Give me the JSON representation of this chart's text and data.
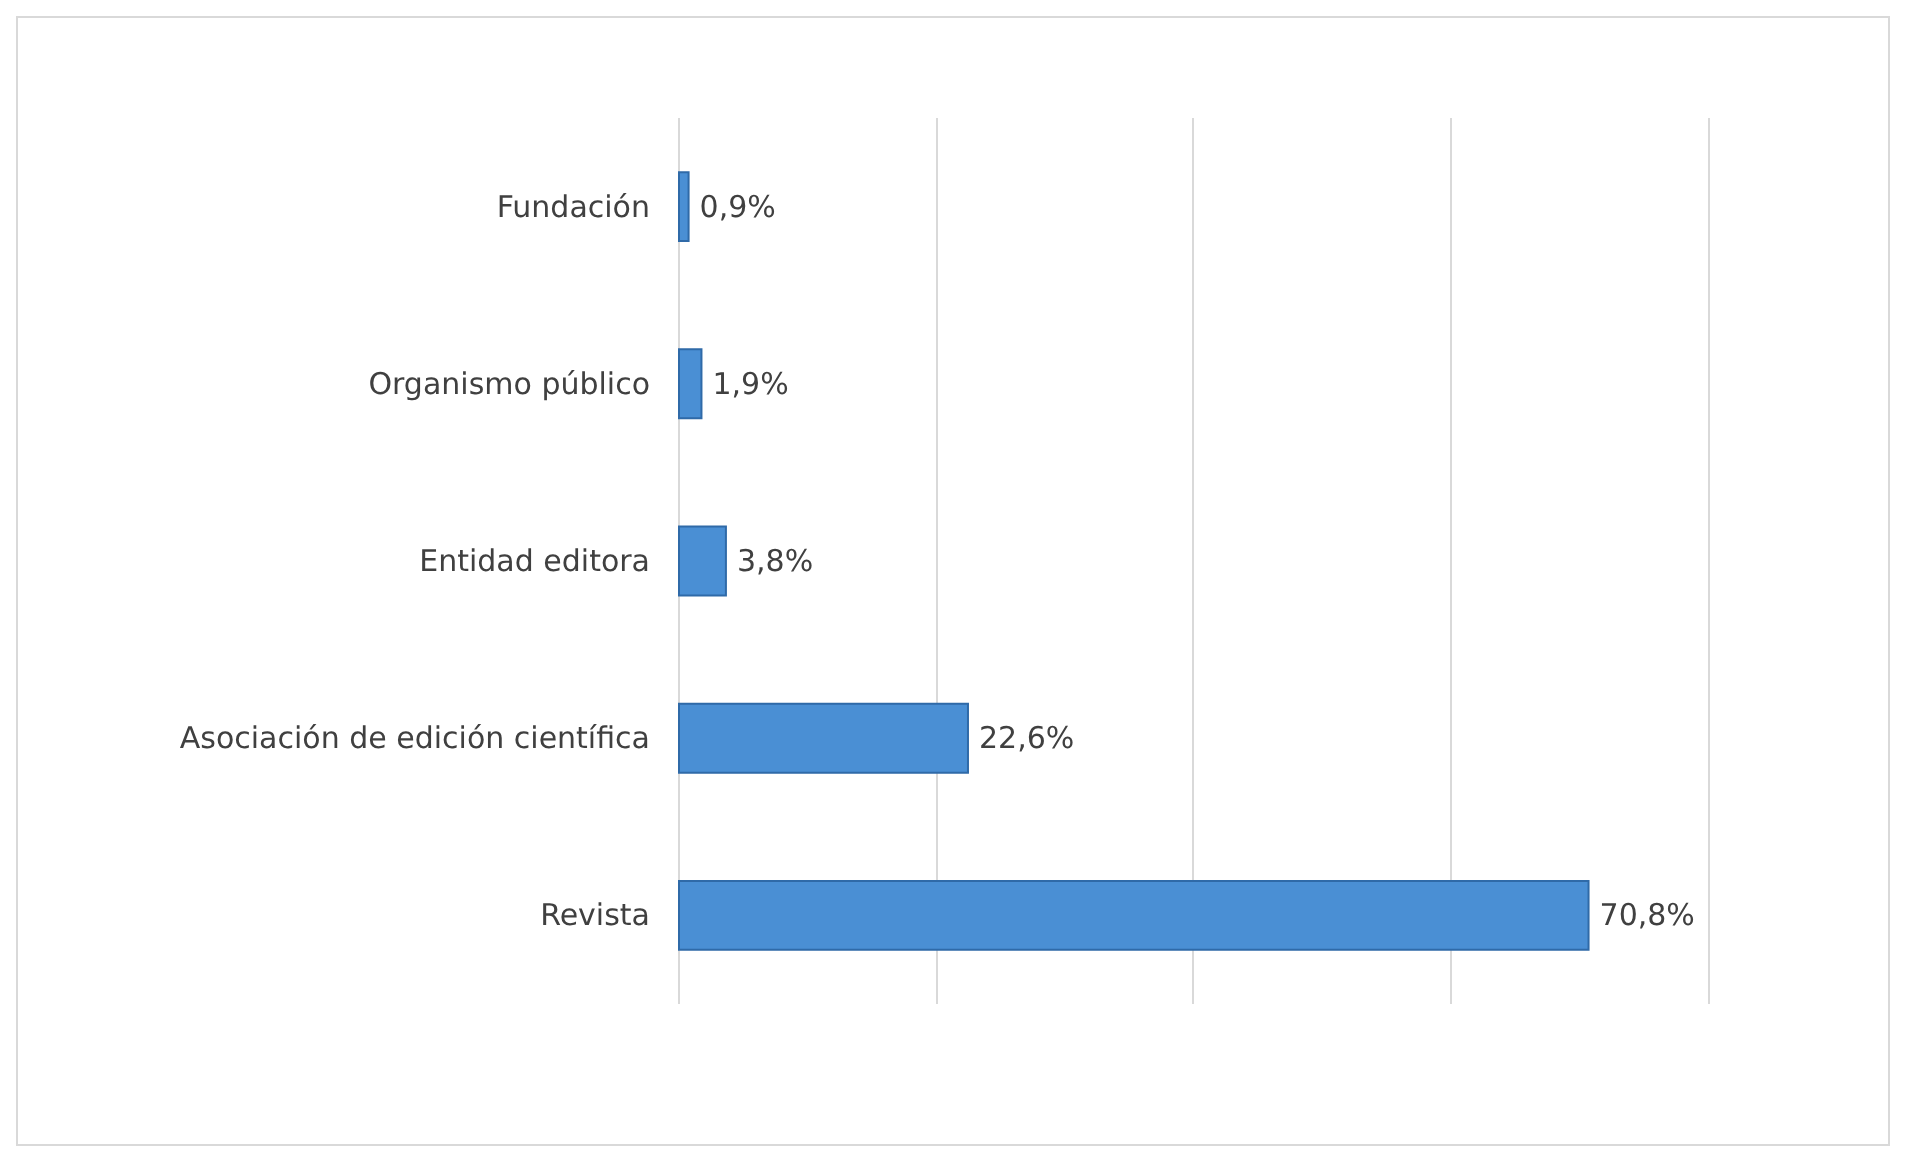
{
  "chart_data": {
    "type": "bar",
    "orientation": "horizontal",
    "categories": [
      "Fundación",
      "Organismo público",
      "Entidad editora",
      "Asociación de edición científica",
      "Revista"
    ],
    "values": [
      0.9,
      1.9,
      3.8,
      22.6,
      70.8
    ],
    "value_labels": [
      "0,9%",
      "1,9%",
      "3,8%",
      "22,6%",
      "70,8%"
    ],
    "color": "#4a8fd4",
    "xlim": [
      0,
      80
    ],
    "xticks": [
      {
        "value": 0,
        "label": null
      },
      {
        "value": 20,
        "label": null
      },
      {
        "value": 40,
        "label": null
      },
      {
        "value": 60,
        "label": null
      },
      {
        "value": 80,
        "label": null
      }
    ],
    "tick_labels": "y",
    "grid": "x"
  }
}
